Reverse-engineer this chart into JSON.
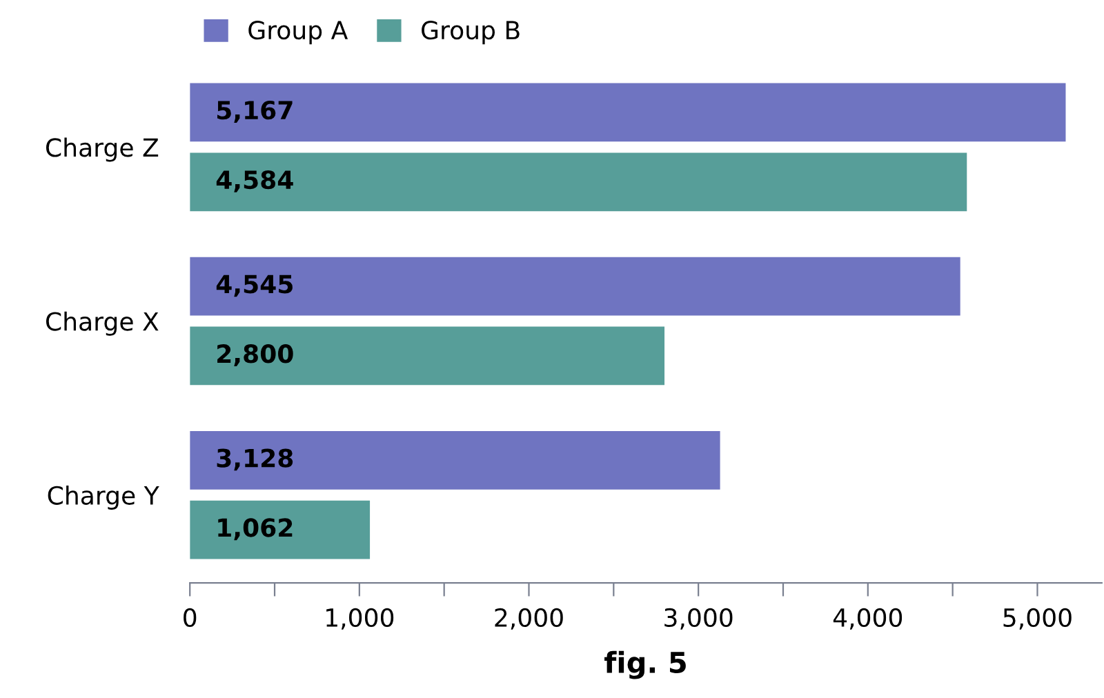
{
  "chart_data": {
    "type": "bar",
    "orientation": "horizontal",
    "xlabel": "fig. 5",
    "categories": [
      "Charge Z",
      "Charge X",
      "Charge Y"
    ],
    "series": [
      {
        "name": "Group A",
        "color": "#6f74c1",
        "values": [
          5167,
          4545,
          3128
        ],
        "value_labels": [
          "5,167",
          "4,545",
          "3,128"
        ]
      },
      {
        "name": "Group B",
        "color": "#579e99",
        "values": [
          4584,
          2800,
          1062
        ],
        "value_labels": [
          "4,584",
          "2,800",
          "1,062"
        ]
      }
    ],
    "xlim": [
      0,
      5380
    ],
    "xticks": [
      0,
      {
        "value": 500,
        "label": null
      },
      {
        "value": 1000,
        "label": "1,000"
      },
      {
        "value": 1500,
        "label": null
      },
      {
        "value": 2000,
        "label": "2,000"
      },
      {
        "value": 2500,
        "label": null
      },
      {
        "value": 3000,
        "label": "3,000"
      },
      {
        "value": 3500,
        "label": null
      },
      {
        "value": 4000,
        "label": "4,000"
      },
      {
        "value": 4500,
        "label": null
      },
      {
        "value": 5000,
        "label": "5,000"
      }
    ],
    "grid": false,
    "legend": "top left"
  }
}
